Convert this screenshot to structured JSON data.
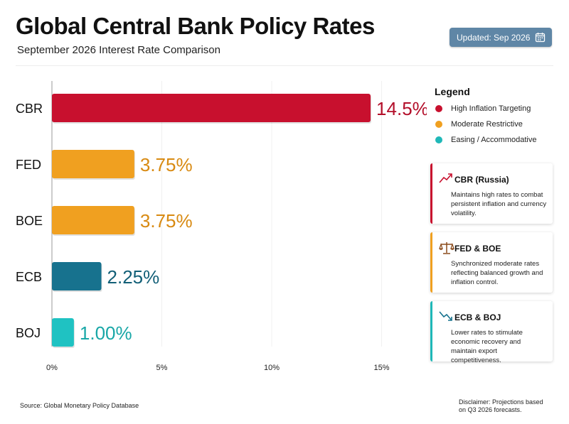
{
  "header": {
    "title": "Global Central Bank Policy Rates",
    "subtitle": "September 2026 Interest Rate Comparison",
    "updated_label": "Updated: Sep 2026"
  },
  "chart_data": {
    "type": "bar",
    "orientation": "horizontal",
    "categories": [
      "CBR",
      "FED",
      "BOE",
      "ECB",
      "BOJ"
    ],
    "values": [
      14.5,
      3.75,
      3.75,
      2.25,
      1.0
    ],
    "value_labels": [
      "14.5%",
      "3.75%",
      "3.75%",
      "2.25%",
      "1.00%"
    ],
    "bar_colors": [
      "#c8102e",
      "#f0a020",
      "#f0a020",
      "#17728e",
      "#1fc2c2"
    ],
    "label_colors": [
      "#b30f2a",
      "#d88a12",
      "#d88a12",
      "#125f77",
      "#18a7a7"
    ],
    "xlim": [
      0,
      16
    ],
    "x_ticks": [
      0,
      5,
      10,
      15
    ],
    "x_tick_labels": [
      "0%",
      "5%",
      "10%",
      "15%"
    ],
    "grid": true
  },
  "legend": {
    "title": "Legend",
    "items": [
      {
        "label": "High Inflation Targeting",
        "color": "#c8102e"
      },
      {
        "label": "Moderate Restrictive",
        "color": "#f0a020"
      },
      {
        "label": "Easing / Accommodative",
        "color": "#1fb8b8"
      }
    ]
  },
  "cards": [
    {
      "heading": "CBR (Russia)",
      "body": "Maintains high rates to combat persistent inflation and currency volatility.",
      "accent": "#c8102e",
      "icon": "trend-up-icon"
    },
    {
      "heading": "FED & BOE",
      "body": "Synchronized moderate rates reflecting balanced growth and inflation control.",
      "accent": "#f0a020",
      "icon": "balance-scale-icon"
    },
    {
      "heading": "ECB & BOJ",
      "body": "Lower rates to stimulate economic recovery and maintain export competitiveness.",
      "accent": "#1fb8b8",
      "icon": "trend-down-icon"
    }
  ],
  "footer": {
    "source": "Source: Global Monetary Policy Database",
    "disclaimer": "Disclaimer: Projections based on Q3 2026 forecasts."
  }
}
